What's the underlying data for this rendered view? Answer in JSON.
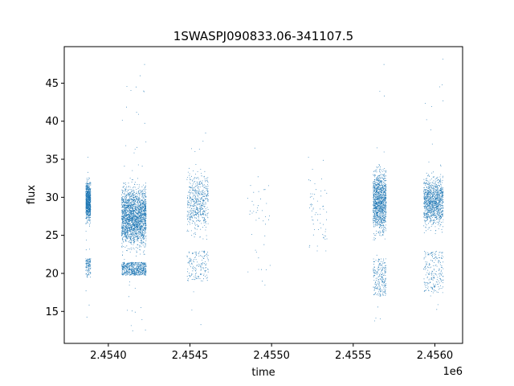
{
  "chart_data": {
    "type": "scatter",
    "title": "1SWASPJ090833.06-341107.5",
    "xlabel": "time",
    "ylabel": "flux",
    "x_offset_label": "1e6",
    "x_offset": 1000000,
    "xlim": [
      2.45373,
      2.45617
    ],
    "ylim": [
      10.8,
      49.8
    ],
    "grid": false,
    "legend": "none",
    "marker_color": "#1f77b4",
    "x_ticks": [
      2.454,
      2.4545,
      2.455,
      2.4555,
      2.456
    ],
    "x_tick_labels": [
      "2.4540",
      "2.4545",
      "2.4550",
      "2.4555",
      "2.4560"
    ],
    "y_ticks": [
      15,
      20,
      25,
      30,
      35,
      40,
      45
    ],
    "y_tick_labels": [
      "15",
      "20",
      "25",
      "30",
      "35",
      "40",
      "45"
    ],
    "series": [
      {
        "values_description": "flux observations grouped by observing season",
        "clusters": [
          {
            "x": [
              2.45386,
              2.45389
            ],
            "y_main": [
              26,
              33
            ],
            "y_low": [
              19.5,
              22
            ],
            "low_frac": 0.12,
            "y_extremes": [
              14.3,
              35.3
            ],
            "count": 900
          },
          {
            "x": [
              2.45408,
              2.45423
            ],
            "y_main": [
              22,
              33
            ],
            "y_low": [
              19.8,
              21.5
            ],
            "low_frac": 0.2,
            "y_extremes": [
              12.5,
              47.5
            ],
            "count": 4200
          },
          {
            "x": [
              2.45448,
              2.45461
            ],
            "y_main": [
              24,
              35
            ],
            "y_low": [
              19,
              23
            ],
            "low_frac": 0.2,
            "y_extremes": [
              13.3,
              38.5
            ],
            "count": 700
          },
          {
            "x": [
              2.45485,
              2.45499
            ],
            "y_main": [
              22,
              36
            ],
            "y_low": [
              18.5,
              23
            ],
            "low_frac": 0.2,
            "y_extremes": [
              18.5,
              36.5
            ],
            "count": 40
          },
          {
            "x": [
              2.45522,
              2.45534
            ],
            "y_main": [
              23,
              35
            ],
            "y_low": [
              23,
              26
            ],
            "low_frac": 0.15,
            "y_extremes": [
              23,
              35.3
            ],
            "count": 60
          },
          {
            "x": [
              2.45562,
              2.4557
            ],
            "y_main": [
              24,
              35
            ],
            "y_low": [
              17,
              22
            ],
            "low_frac": 0.15,
            "y_extremes": [
              13.8,
              47.5
            ],
            "count": 1400
          },
          {
            "x": [
              2.45593,
              2.45605
            ],
            "y_main": [
              25,
              34
            ],
            "y_low": [
              17.5,
              23
            ],
            "low_frac": 0.15,
            "y_extremes": [
              15.3,
              48.2
            ],
            "count": 1300
          }
        ]
      }
    ]
  }
}
